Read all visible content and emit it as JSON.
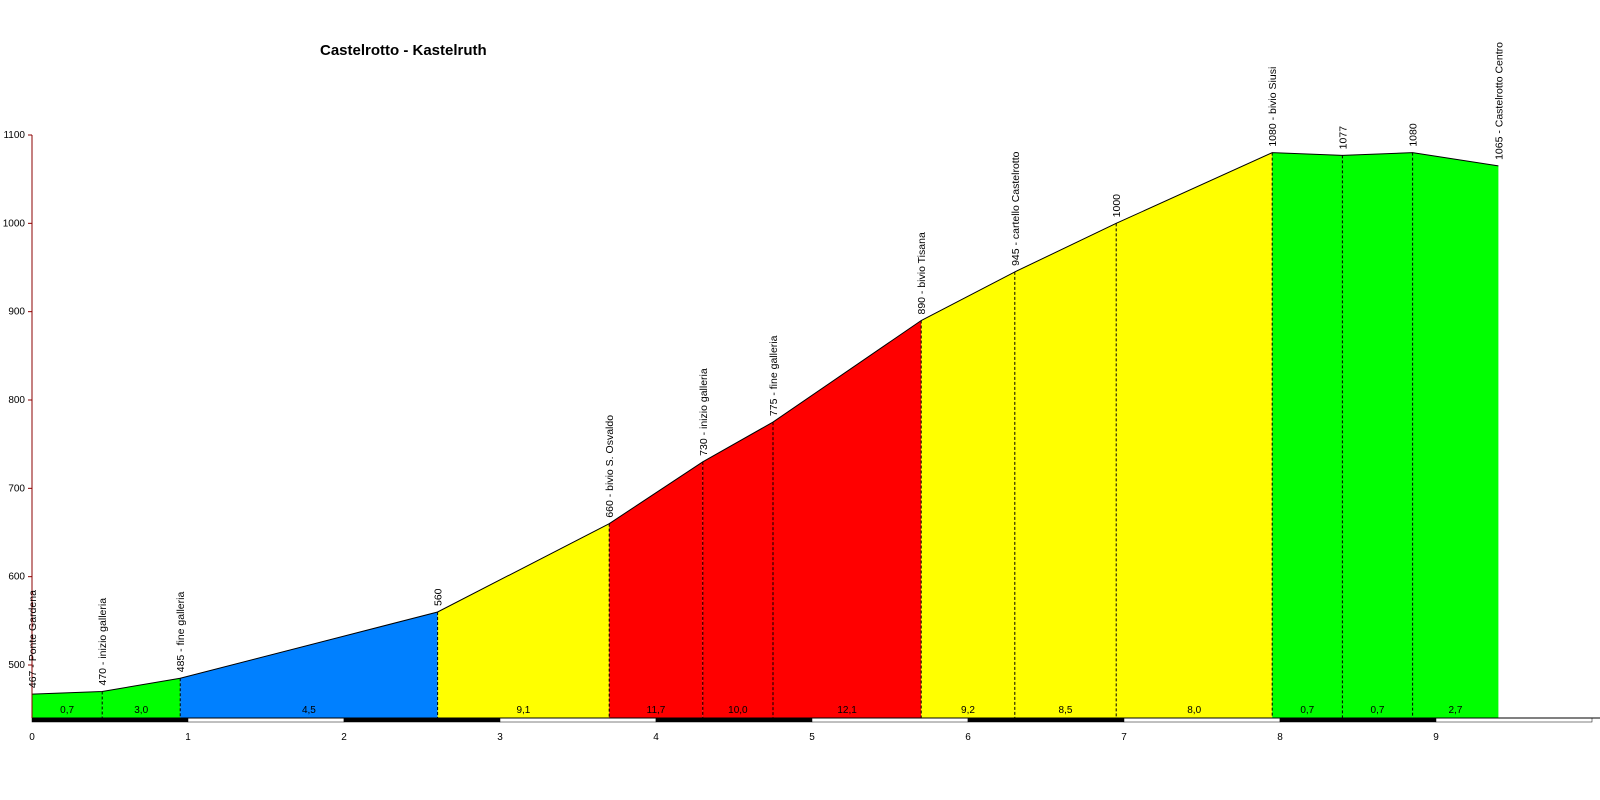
{
  "chart_data": {
    "type": "area",
    "title": "Castelrotto - Kastelruth",
    "xlabel": "",
    "ylabel": "",
    "xlim": [
      0,
      10
    ],
    "ylim": [
      440,
      1100
    ],
    "x_ticks": [
      0,
      1,
      2,
      3,
      4,
      5,
      6,
      7,
      8,
      9
    ],
    "y_ticks": [
      500,
      600,
      700,
      800,
      900,
      1000,
      1100
    ],
    "grid": false,
    "legend": "none",
    "points": [
      {
        "x": 0,
        "y": 467,
        "label": "467 - Ponte Gardena"
      },
      {
        "x": 0.45,
        "y": 470,
        "label": "470 - inizio galleria"
      },
      {
        "x": 0.95,
        "y": 485,
        "label": "485 - fine galleria"
      },
      {
        "x": 2.6,
        "y": 560,
        "label": "560"
      },
      {
        "x": 3.7,
        "y": 660,
        "label": "660 - bivio S. Osvaldo"
      },
      {
        "x": 4.3,
        "y": 730,
        "label": "730 - inizio galleria"
      },
      {
        "x": 4.75,
        "y": 775,
        "label": "775 - fine galleria"
      },
      {
        "x": 5.7,
        "y": 890,
        "label": "890 - bivio Tisana"
      },
      {
        "x": 6.3,
        "y": 945,
        "label": "945 - cartello Castelrotto"
      },
      {
        "x": 6.95,
        "y": 1000,
        "label": "1000"
      },
      {
        "x": 7.95,
        "y": 1080,
        "label": "1080 - bivio Siusi"
      },
      {
        "x": 8.4,
        "y": 1077,
        "label": "1077"
      },
      {
        "x": 8.85,
        "y": 1080,
        "label": "1080"
      },
      {
        "x": 9.4,
        "y": 1065,
        "label": "1065 - Castelrotto Centro"
      }
    ],
    "segments": [
      {
        "grade": "0,7",
        "color": "#00ff00"
      },
      {
        "grade": "3,0",
        "color": "#00ff00"
      },
      {
        "grade": "4,5",
        "color": "#0080ff"
      },
      {
        "grade": "9,1",
        "color": "#ffff00"
      },
      {
        "grade": "11,7",
        "color": "#ff0000"
      },
      {
        "grade": "10,0",
        "color": "#ff0000"
      },
      {
        "grade": "12,1",
        "color": "#ff0000"
      },
      {
        "grade": "9,2",
        "color": "#ffff00"
      },
      {
        "grade": "8,5",
        "color": "#ffff00"
      },
      {
        "grade": "8,0",
        "color": "#ffff00"
      },
      {
        "grade": "0,7",
        "color": "#00ff00"
      },
      {
        "grade": "0,7",
        "color": "#00ff00"
      },
      {
        "grade": "2,7",
        "color": "#00ff00"
      }
    ]
  }
}
